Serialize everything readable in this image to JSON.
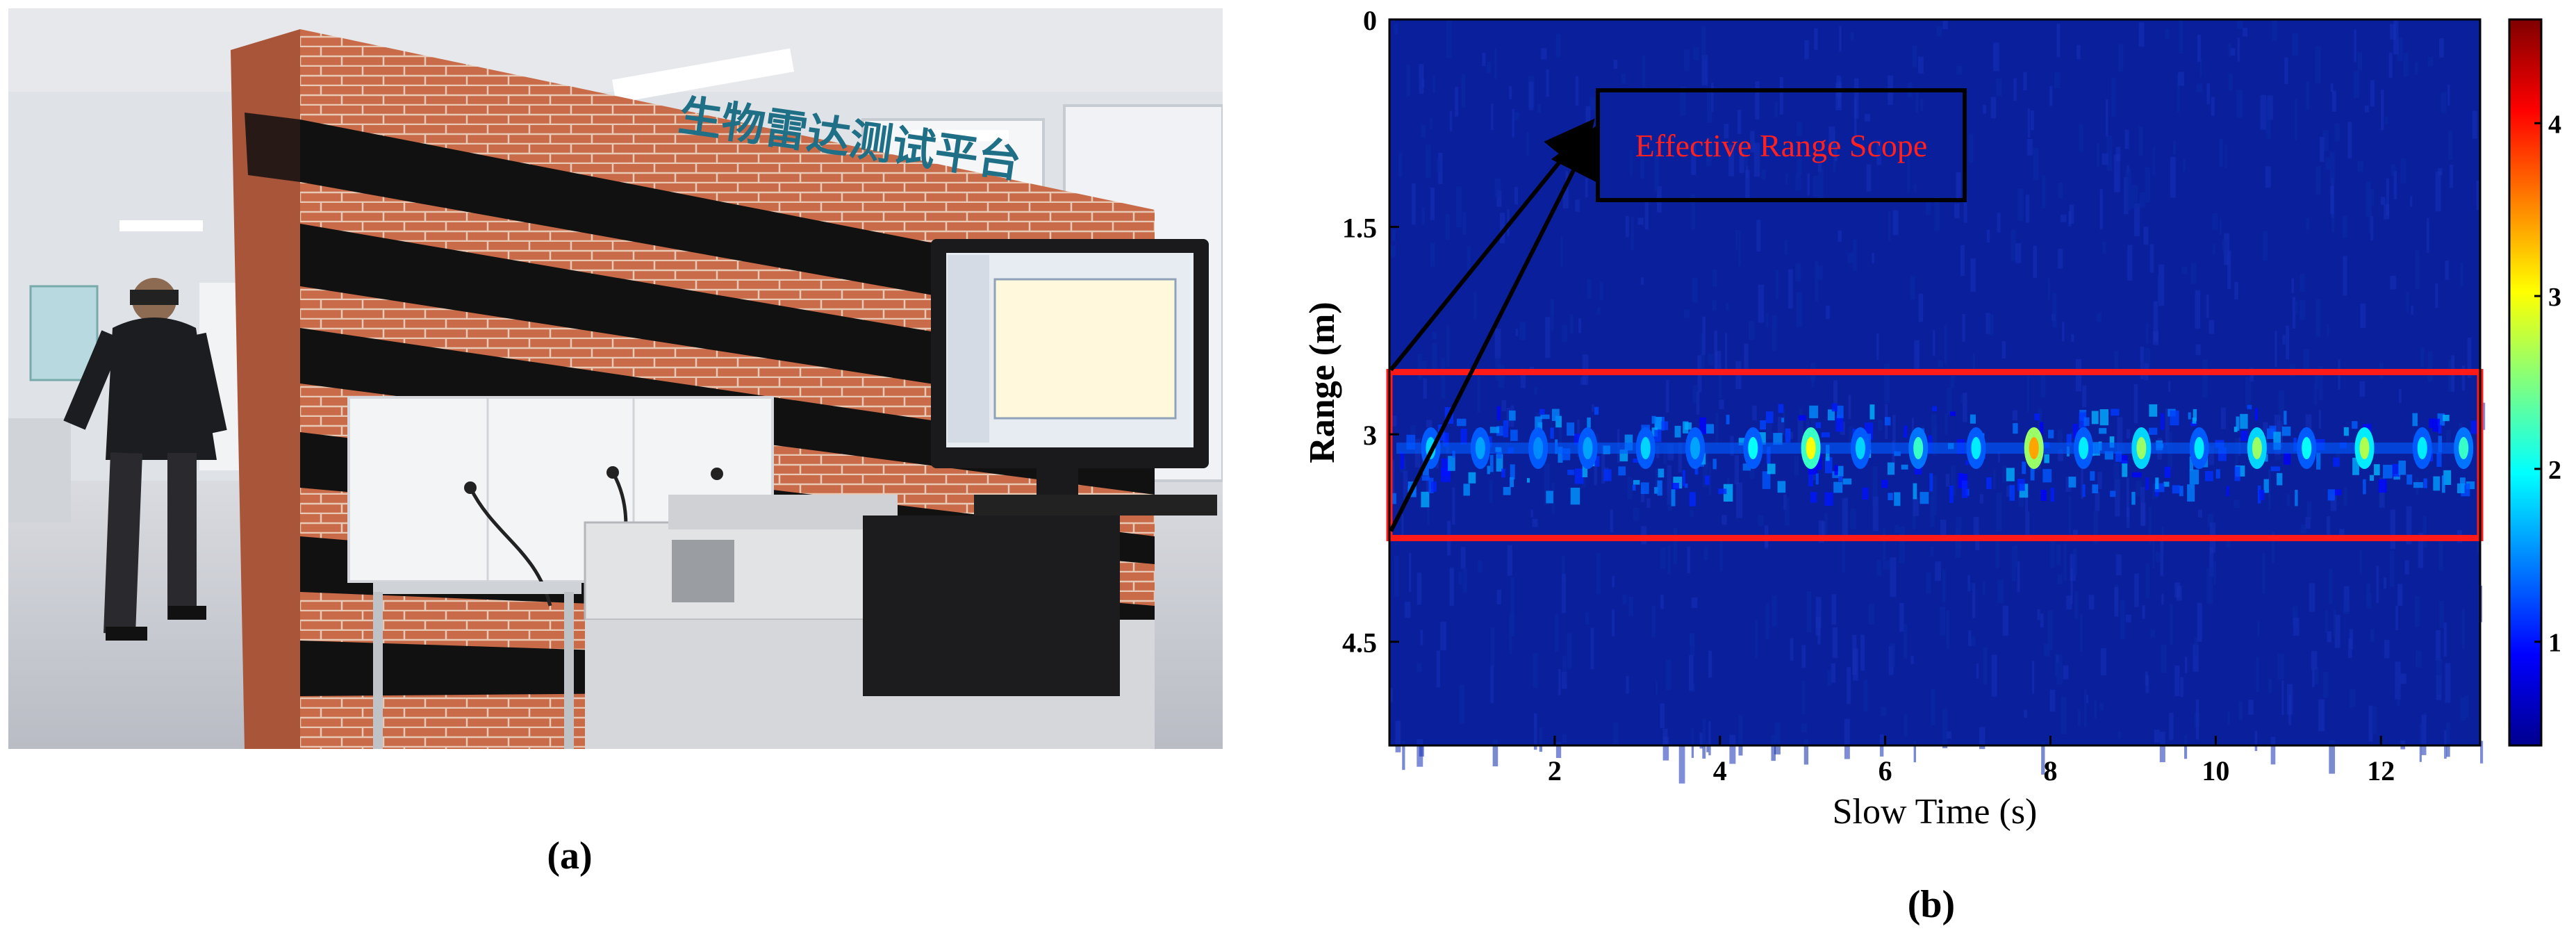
{
  "photo_sign_text": "生物雷达测试平台",
  "panel_a": {
    "caption": "(a)"
  },
  "panel_b": {
    "caption": "(b)",
    "annotation": "Effective Range Scope",
    "colors": {
      "background": "#0a1f9c",
      "band_box": "#ff1a1a",
      "annotation_text": "#ff2020",
      "arrow": "#000000"
    }
  },
  "chart_data": {
    "type": "heatmap",
    "title": "",
    "xlabel": "Slow Time (s)",
    "ylabel": "Range (m)",
    "xlim": [
      0,
      13.2
    ],
    "ylim": [
      0,
      5.25
    ],
    "y_inverted": true,
    "x_ticks": [
      2,
      4,
      6,
      8,
      10,
      12
    ],
    "y_ticks": [
      0,
      1.5,
      3,
      4.5
    ],
    "y_tick_labels": [
      "0",
      "1.5",
      "3",
      "4.5"
    ],
    "highlight_band_range_m": [
      2.55,
      3.75
    ],
    "signal_range_m": 3.1,
    "peak_times_s": [
      0.5,
      1.1,
      1.8,
      2.4,
      3.1,
      3.7,
      4.4,
      5.1,
      5.7,
      6.4,
      7.1,
      7.8,
      8.4,
      9.1,
      9.8,
      10.5,
      11.1,
      11.8,
      12.5,
      13.0
    ],
    "peak_values": [
      1.8,
      1.6,
      1.5,
      1.6,
      1.8,
      1.6,
      2.0,
      3.0,
      1.8,
      2.2,
      1.9,
      3.4,
      1.9,
      2.6,
      1.9,
      2.6,
      2.0,
      2.7,
      1.9,
      2.2
    ],
    "colorbar": {
      "min": 0.4,
      "max": 4.6,
      "ticks": [
        1,
        2,
        3,
        4
      ],
      "tick_labels": [
        "1",
        "2",
        "3",
        "4"
      ]
    }
  }
}
